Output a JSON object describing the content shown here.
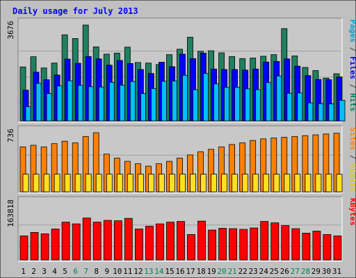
{
  "chart_data": {
    "type": "bar",
    "title": "Daily usage for July 2013",
    "categories": [
      "1",
      "2",
      "3",
      "4",
      "5",
      "6",
      "7",
      "8",
      "9",
      "10",
      "11",
      "12",
      "13",
      "14",
      "15",
      "16",
      "17",
      "18",
      "19",
      "20",
      "21",
      "22",
      "23",
      "24",
      "25",
      "26",
      "27",
      "28",
      "29",
      "30",
      "31"
    ],
    "weekend_days": [
      "6",
      "7",
      "13",
      "14",
      "20",
      "21",
      "27",
      "28"
    ],
    "panels": [
      {
        "id": "top",
        "scale_max": 3676,
        "right_labels": [
          {
            "text": "Pages",
            "color": "#00a0d0"
          },
          {
            "text": " / ",
            "color": "#404040"
          },
          {
            "text": "Files",
            "color": "#0000ff"
          },
          {
            "text": " / ",
            "color": "#404040"
          },
          {
            "text": "Hits",
            "color": "#008060"
          }
        ],
        "series": [
          {
            "name": "Hits",
            "color": "#208060",
            "values": [
              2070,
              2460,
              2030,
              2220,
              3300,
              3160,
              3676,
              2840,
              2560,
              2600,
              2830,
              2240,
              2220,
              2160,
              2540,
              2750,
              3210,
              2670,
              2690,
              2610,
              2470,
              2390,
              2410,
              2480,
              2540,
              3540,
              2490,
              2050,
              1930,
              1640,
              1810
            ]
          },
          {
            "name": "Files",
            "color": "#0000ff",
            "values": [
              1180,
              1870,
              1580,
              1760,
              2370,
              2210,
              2470,
              2380,
              2140,
              2320,
              2200,
              1970,
              1820,
              2250,
              2080,
              2560,
              2390,
              2600,
              1990,
              1970,
              1970,
              1950,
              1990,
              2260,
              2280,
              2380,
              2100,
              1740,
              1590,
              1580,
              1690
            ]
          },
          {
            "name": "Pages",
            "color": "#00c0ff",
            "values": [
              550,
              1440,
              1050,
              1340,
              1540,
              1360,
              1310,
              1300,
              1480,
              1370,
              1510,
              1050,
              1240,
              1520,
              1530,
              1750,
              1200,
              1820,
              1420,
              1290,
              1290,
              1230,
              1200,
              1470,
              1720,
              1060,
              1070,
              690,
              660,
              650,
              790
            ]
          }
        ]
      },
      {
        "id": "middle",
        "scale_max": 736,
        "right_labels": [
          {
            "text": "Sites",
            "color": "#ff8000"
          },
          {
            "text": " / ",
            "color": "#404040"
          },
          {
            "text": "Visits",
            "color": "#e0d000"
          }
        ],
        "series": [
          {
            "name": "Visits",
            "color": "#ff8000",
            "values": [
              560,
              580,
              560,
              600,
              630,
              610,
              690,
              736,
              470,
              420,
              380,
              350,
              320,
              350,
              380,
              420,
              460,
              500,
              530,
              560,
              590,
              610,
              640,
              660,
              670,
              680,
              690,
              700,
              710,
              720,
              730
            ]
          },
          {
            "name": "Sites",
            "color": "#ffe020",
            "values": [
              220,
              220,
              220,
              220,
              220,
              220,
              220,
              220,
              220,
              220,
              220,
              220,
              220,
              220,
              220,
              220,
              220,
              220,
              220,
              220,
              220,
              220,
              220,
              220,
              220,
              220,
              220,
              220,
              220,
              220,
              220
            ]
          }
        ]
      },
      {
        "id": "bottom",
        "scale_max": 163818,
        "right_labels": [
          {
            "text": "KBytes",
            "color": "#ff0000"
          }
        ],
        "series": [
          {
            "name": "KBytes",
            "color": "#ff0000",
            "values": [
              70000,
              80000,
              76000,
              90000,
              110000,
              105000,
              122000,
              110000,
              115000,
              114000,
              121000,
              90000,
              98000,
              105000,
              110000,
              112000,
              74000,
              113000,
              87000,
              92000,
              91000,
              89000,
              93000,
              112000,
              108000,
              100000,
              91000,
              78000,
              84000,
              74000,
              70000
            ]
          }
        ]
      }
    ]
  }
}
